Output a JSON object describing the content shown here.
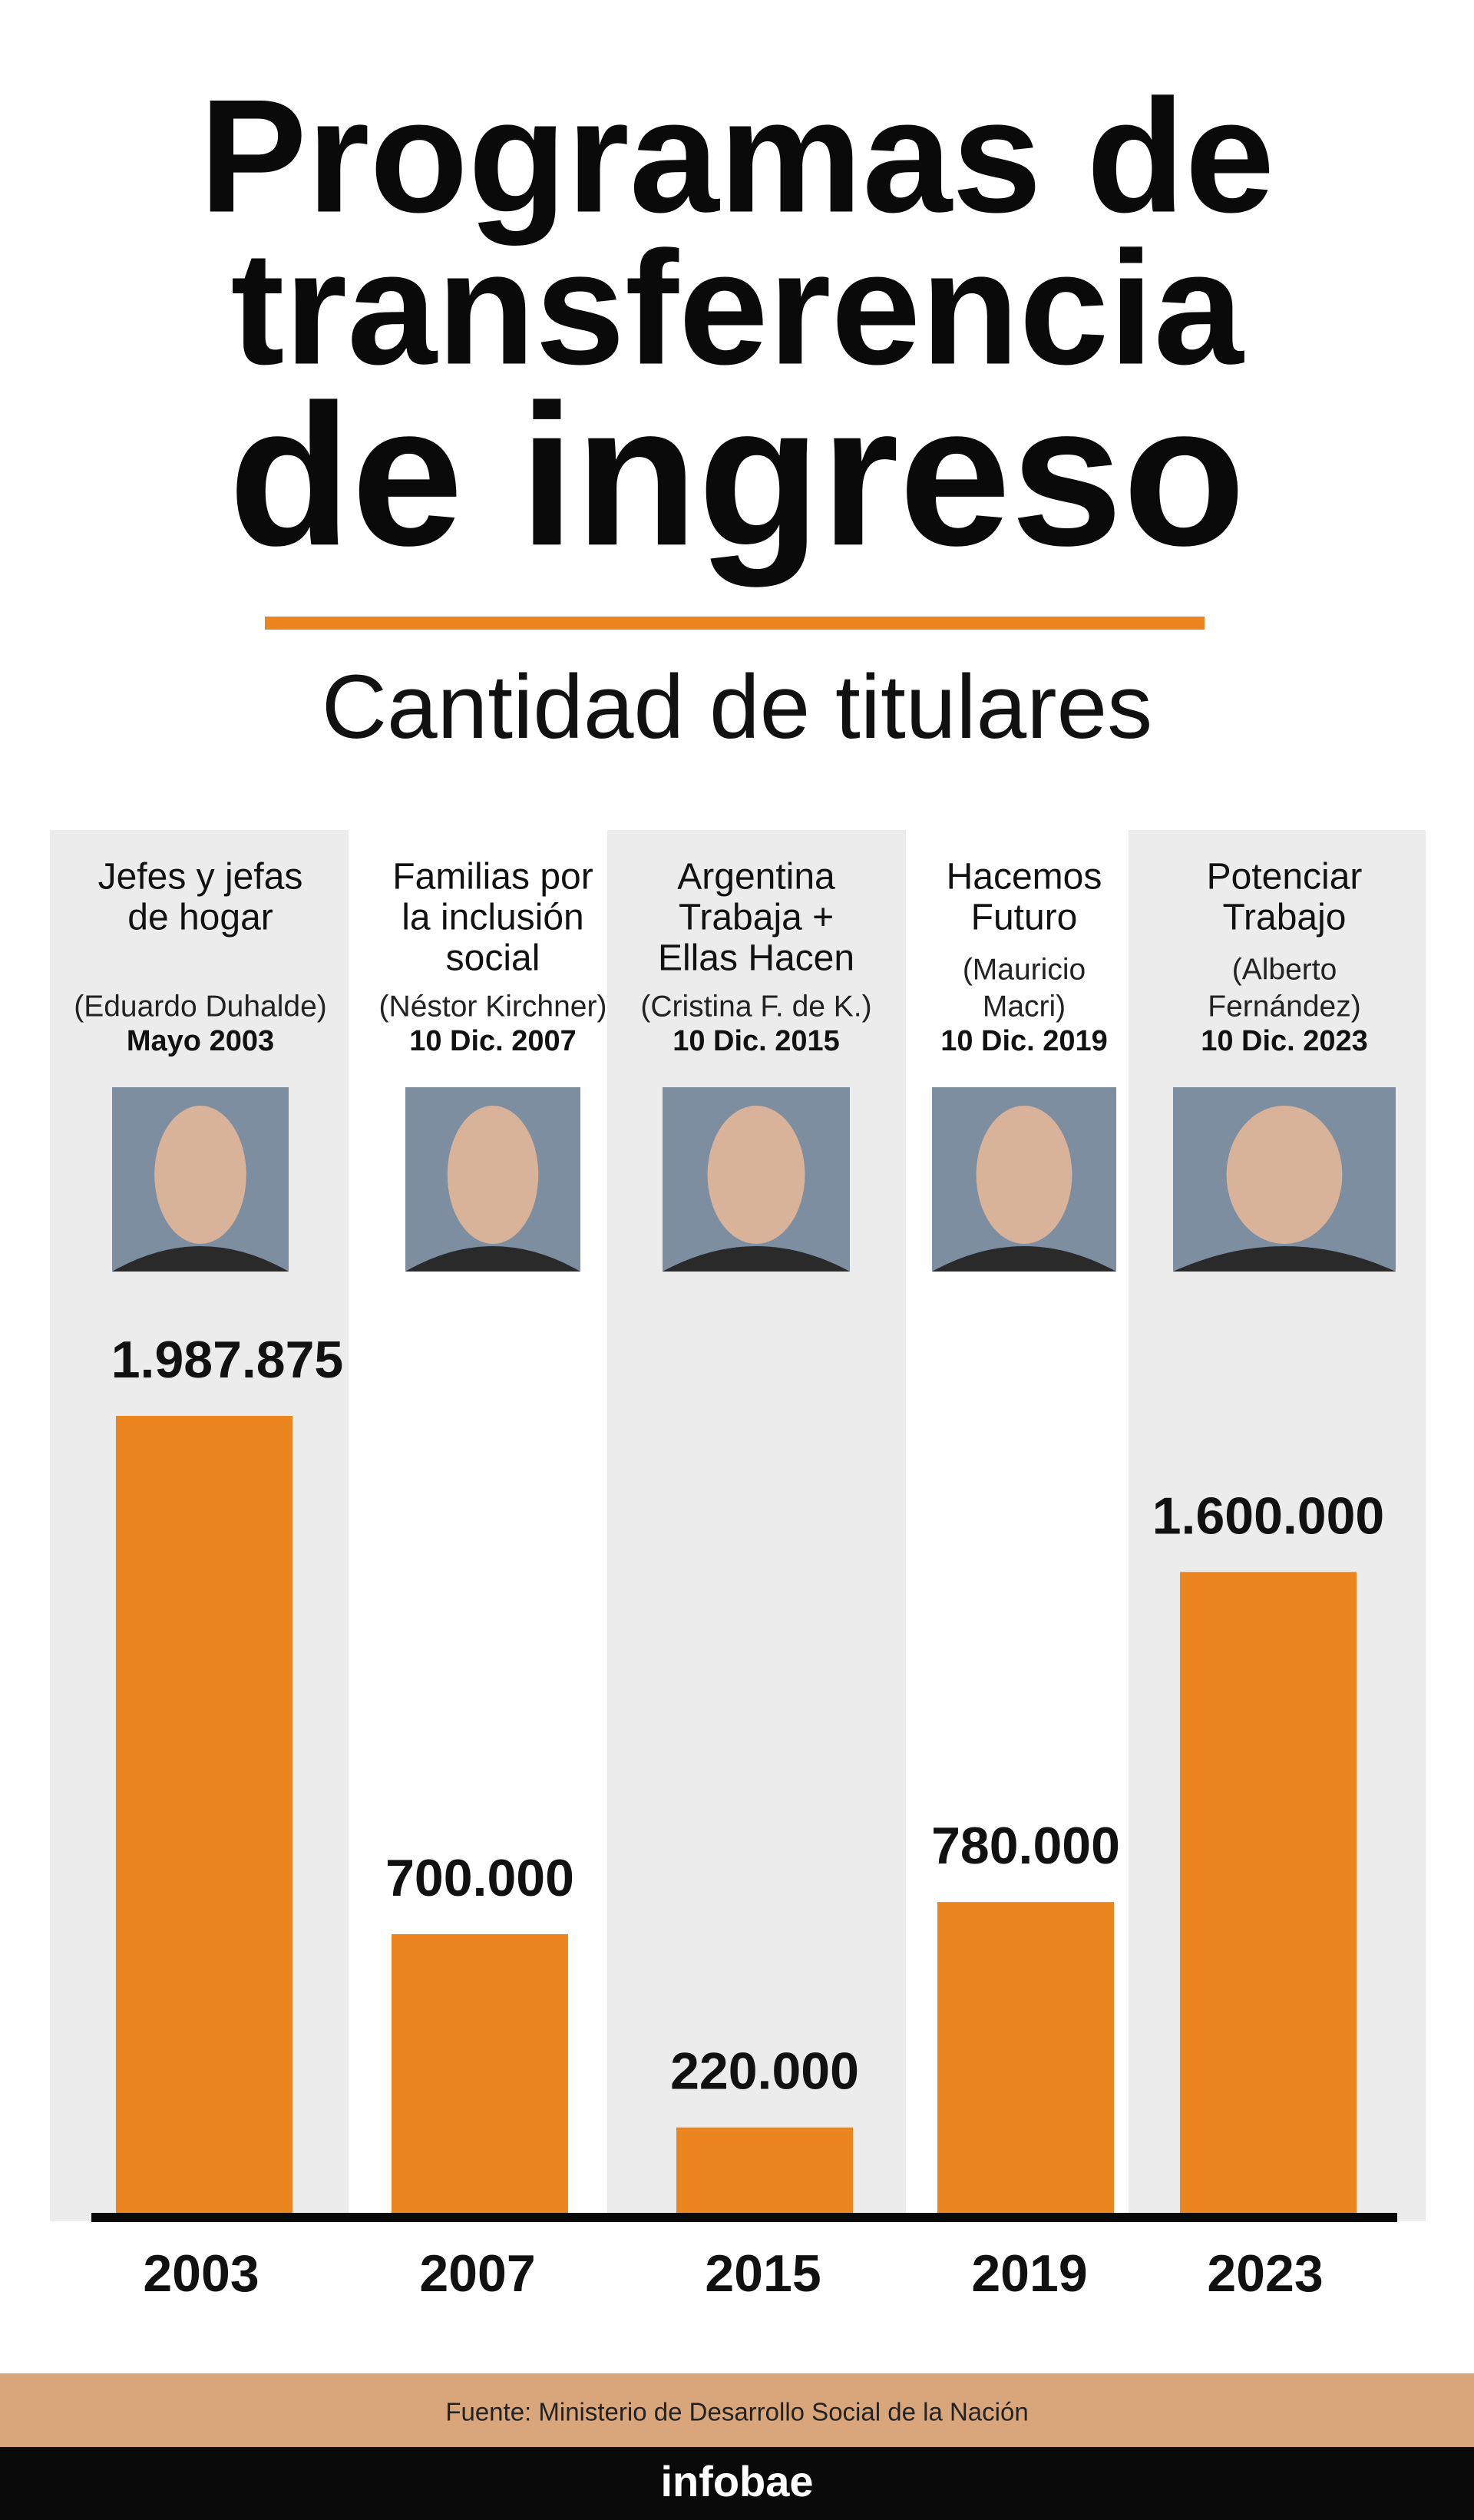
{
  "chart_data": {
    "type": "bar",
    "title_lines": [
      "Programas de",
      "transferencia",
      "de ingreso"
    ],
    "subtitle": "Cantidad de titulares",
    "categories": [
      "2003",
      "2007",
      "2015",
      "2019",
      "2023"
    ],
    "values": [
      1987875,
      700000,
      220000,
      780000,
      1600000
    ],
    "value_labels": [
      "1.987.875",
      "700.000",
      "220.000",
      "780.000",
      "1.600.000"
    ],
    "color": "#ea8520",
    "programs": [
      [
        "Jefes y jefas",
        "de hogar"
      ],
      [
        "Familias por",
        "la inclusión",
        "social"
      ],
      [
        "Argentina",
        "Trabaja +",
        "Ellas Hacen"
      ],
      [
        "Hacemos",
        "Futuro"
      ],
      [
        "Potenciar",
        "Trabajo"
      ]
    ],
    "presidents": [
      [
        "(Eduardo Duhalde)"
      ],
      [
        "(Néstor Kirchner)"
      ],
      [
        "(Cristina F. de K.)"
      ],
      [
        "(Mauricio",
        "Macri)"
      ],
      [
        "(Alberto",
        "Fernández)"
      ]
    ],
    "dates": [
      "Mayo 2003",
      "10 Dic. 2007",
      "10 Dic. 2015",
      "10 Dic. 2019",
      "10 Dic. 2023"
    ],
    "source": "Fuente: Ministerio de Desarrollo Social de la Nación",
    "brand": "infobae"
  }
}
